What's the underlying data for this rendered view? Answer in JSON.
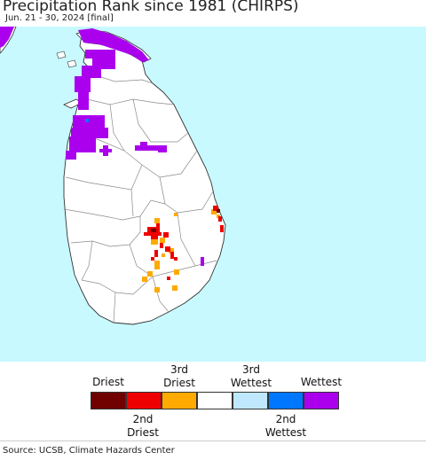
{
  "header": {
    "title": "Precipitation Rank since 1981 (CHIRPS)",
    "subtitle": "Jun. 21 - 30, 2024 [final]"
  },
  "map": {
    "colors": {
      "ocean": "#c8f9ff",
      "land": "#ffffff",
      "boundary": "#8a8a8a",
      "coast": "#333333"
    }
  },
  "legend": {
    "top_labels": [
      {
        "line1": "Driest",
        "line2": ""
      },
      {
        "line1": "3rd",
        "line2": "Driest"
      },
      {
        "line1": "3rd",
        "line2": "Wettest"
      },
      {
        "line1": "Wettest",
        "line2": ""
      }
    ],
    "bottom_labels": [
      {
        "line1": "2nd",
        "line2": "Driest"
      },
      {
        "line1": "2nd",
        "line2": "Wettest"
      }
    ],
    "swatches": [
      {
        "name": "driest",
        "color": "#700000"
      },
      {
        "name": "2nd-driest",
        "color": "#ee0000"
      },
      {
        "name": "3rd-driest",
        "color": "#ffaa00"
      },
      {
        "name": "normal",
        "color": "#ffffff"
      },
      {
        "name": "3rd-wettest",
        "color": "#bfe8ff"
      },
      {
        "name": "2nd-wettest",
        "color": "#0077ff"
      },
      {
        "name": "wettest",
        "color": "#aa00ee"
      }
    ]
  },
  "footer": {
    "source": "Source: UCSB, Climate Hazards Center"
  }
}
